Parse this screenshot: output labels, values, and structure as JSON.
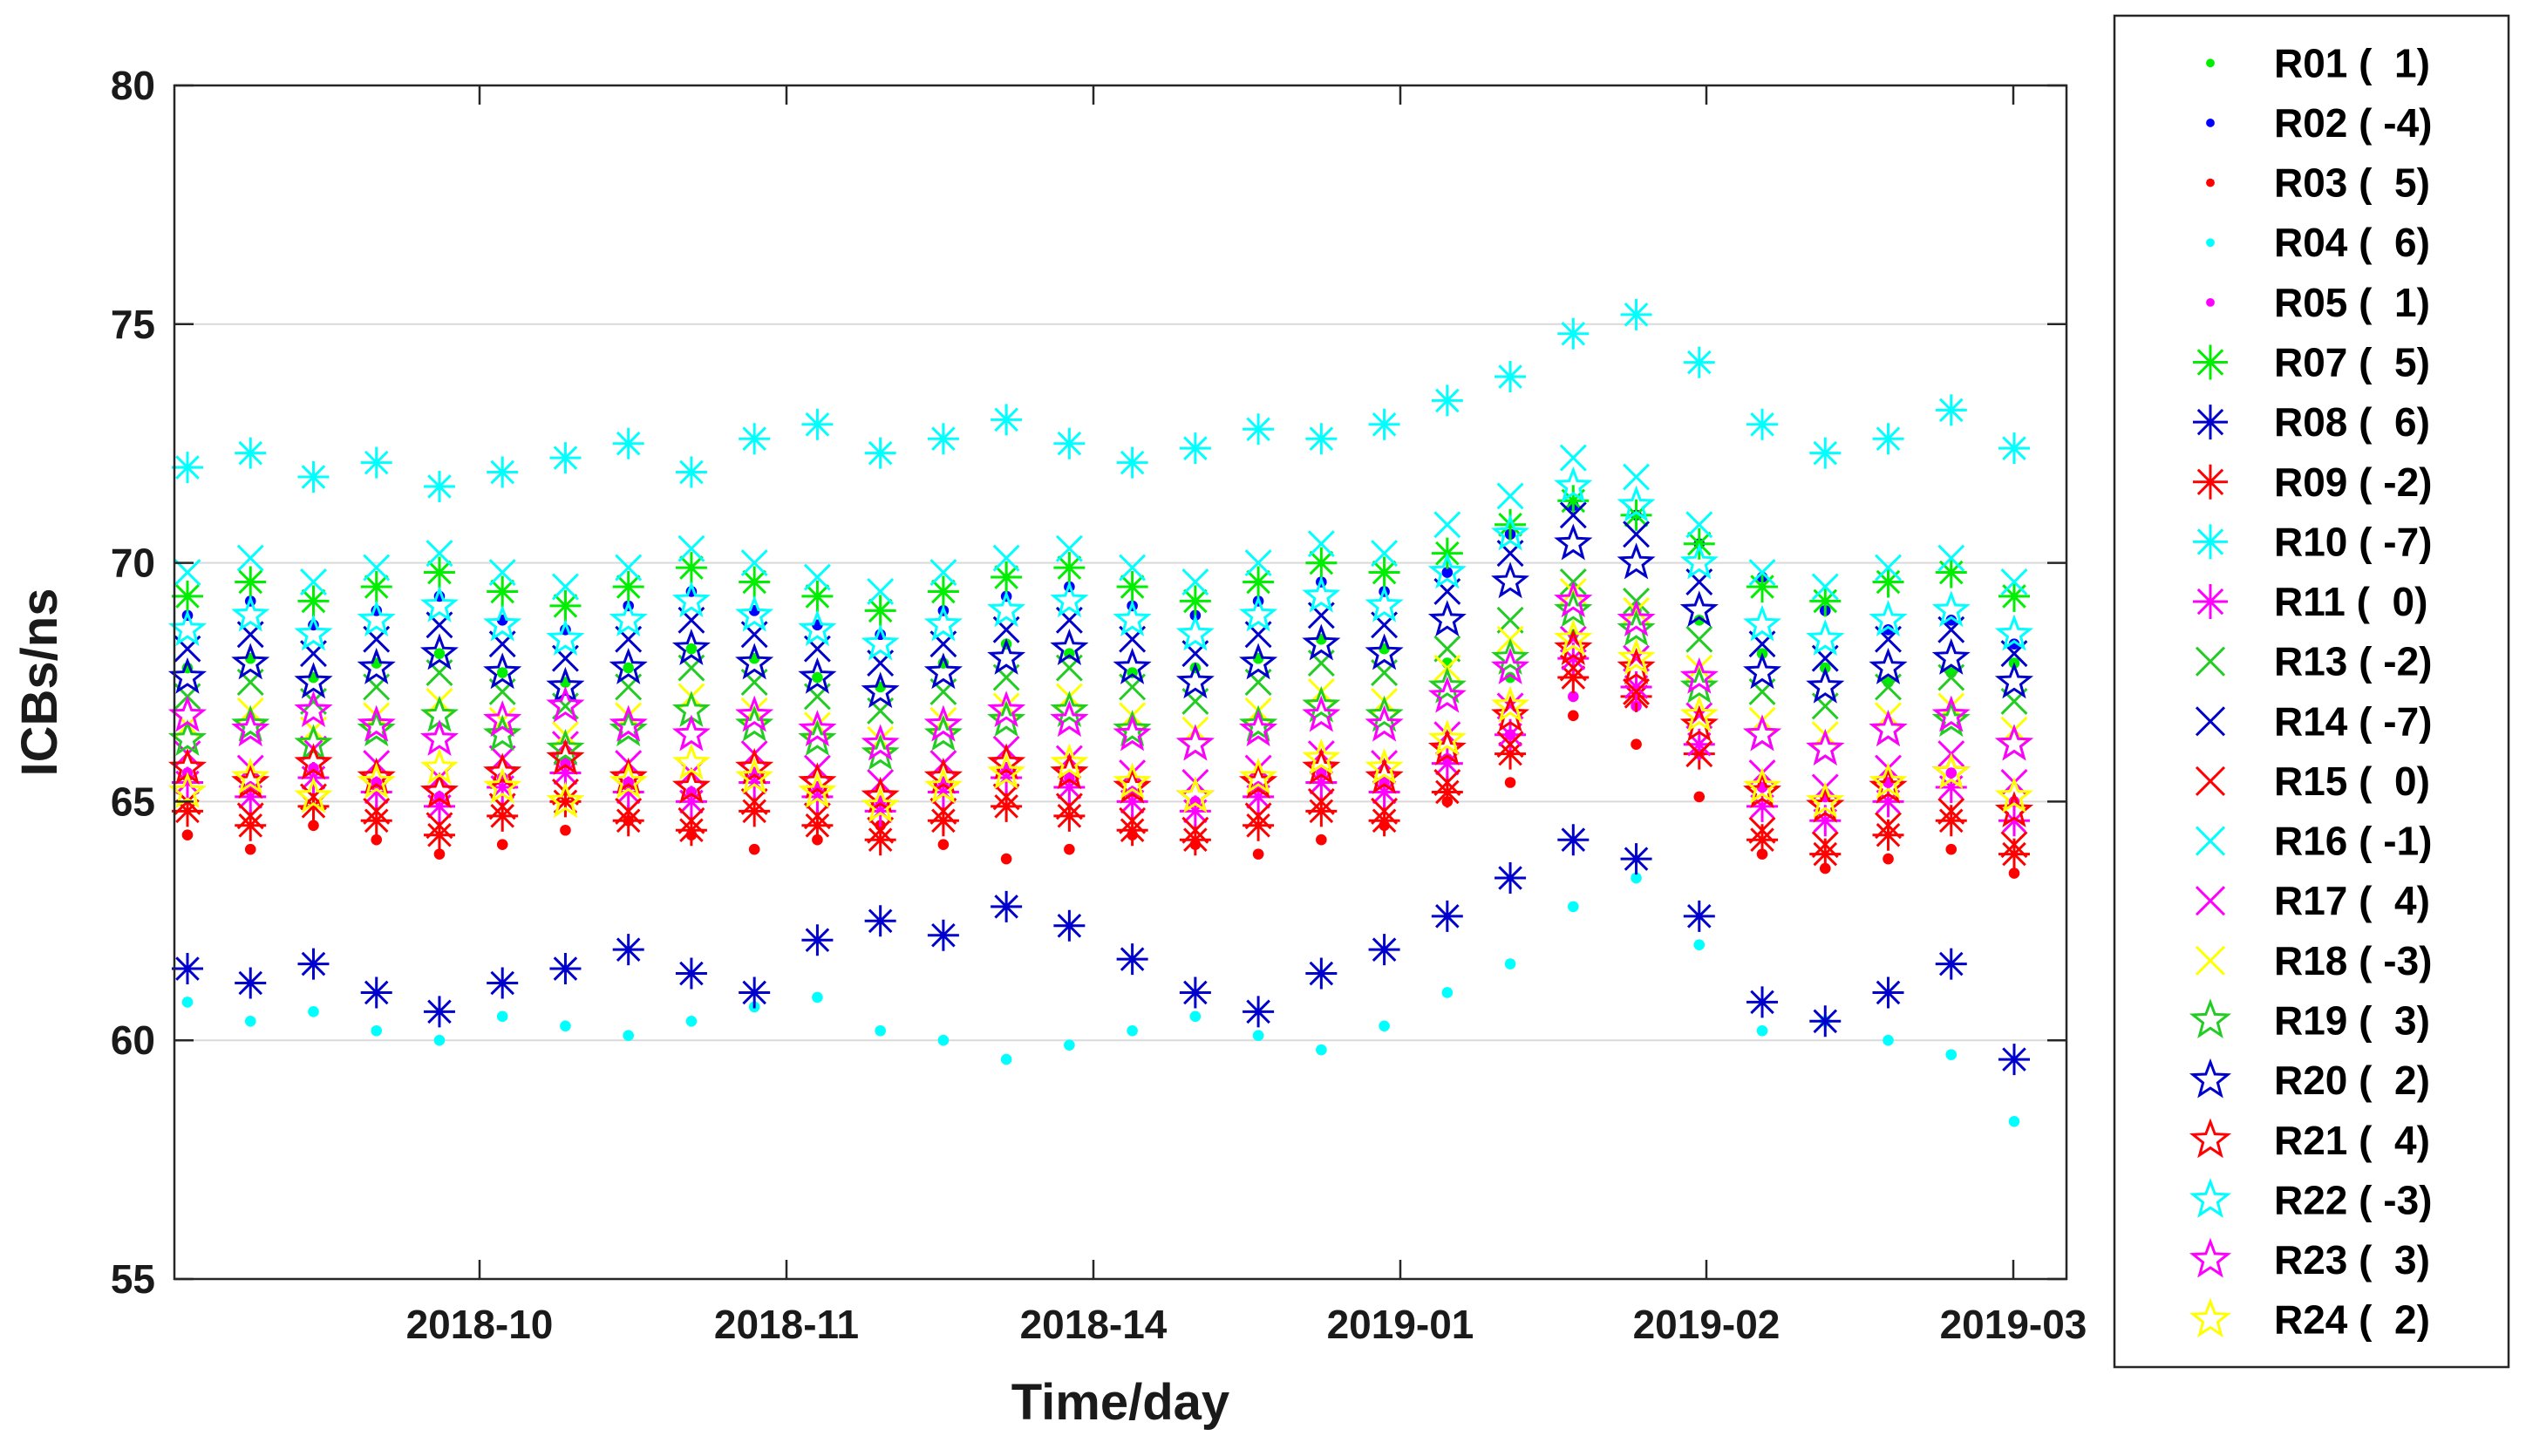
{
  "chart_data": {
    "type": "scatter",
    "title": "",
    "xlabel": "Time/day",
    "ylabel": "ICBs/ns",
    "ylim": [
      55,
      80
    ],
    "yticks": [
      "55",
      "60",
      "65",
      "70",
      "75",
      "80"
    ],
    "xticks": [
      "2018-10",
      "2018-11",
      "2018-14",
      "2019-01",
      "2019-02",
      "2019-03"
    ],
    "grid": "horizontal",
    "legend_position": "right, outside plot",
    "series": [
      {
        "name": "R01 (  1)",
        "color": "#00ee00",
        "marker": "dot",
        "values": [
          67.8,
          68.0,
          67.6,
          67.9,
          68.1,
          67.7,
          67.5,
          67.8,
          68.2,
          68.0,
          67.6,
          67.4,
          67.9,
          68.3,
          68.1,
          67.7,
          67.8,
          68.0,
          68.4,
          68.2,
          67.9,
          67.6,
          68.5,
          69.0,
          68.8,
          68.1,
          67.8,
          67.5,
          67.7,
          67.9
        ]
      },
      {
        "name": "R02 ( -4)",
        "color": "#0000ff",
        "marker": "dot",
        "values": [
          68.9,
          69.2,
          68.7,
          69.0,
          69.3,
          68.8,
          68.6,
          69.1,
          69.4,
          69.0,
          68.7,
          68.5,
          69.0,
          69.3,
          69.5,
          69.1,
          68.9,
          69.2,
          69.6,
          69.4,
          69.8,
          70.6,
          71.2,
          71.0,
          70.4,
          69.7,
          69.0,
          68.6,
          68.8,
          68.3
        ]
      },
      {
        "name": "R03 (  5)",
        "color": "#ff0000",
        "marker": "dot",
        "values": [
          64.3,
          64.0,
          64.5,
          64.2,
          63.9,
          64.1,
          64.4,
          64.6,
          64.3,
          64.0,
          64.2,
          64.5,
          64.1,
          63.8,
          64.0,
          64.3,
          64.1,
          63.9,
          64.2,
          64.5,
          65.0,
          65.4,
          66.8,
          66.2,
          65.1,
          63.9,
          63.6,
          63.8,
          64.0,
          63.5
        ]
      },
      {
        "name": "R04 (  6)",
        "color": "#00ffff",
        "marker": "dot",
        "values": [
          60.8,
          60.4,
          60.6,
          60.2,
          60.0,
          60.5,
          60.3,
          60.1,
          60.4,
          60.7,
          60.9,
          60.2,
          60.0,
          59.6,
          59.9,
          60.2,
          60.5,
          60.1,
          59.8,
          60.3,
          61.0,
          61.6,
          62.8,
          63.4,
          62.0,
          60.2,
          60.4,
          60.0,
          59.7,
          58.3
        ]
      },
      {
        "name": "R05 (  1)",
        "color": "#ff00ff",
        "marker": "dot",
        "values": [
          65.6,
          65.3,
          65.7,
          65.4,
          65.1,
          65.5,
          65.8,
          65.4,
          65.2,
          65.6,
          65.3,
          65.0,
          65.4,
          65.7,
          65.5,
          65.2,
          65.0,
          65.3,
          65.6,
          65.4,
          65.9,
          66.4,
          67.2,
          67.0,
          66.0,
          65.3,
          65.1,
          65.4,
          65.6,
          65.0
        ]
      },
      {
        "name": "R07 (  5)",
        "color": "#00ee00",
        "marker": "asterisk",
        "values": [
          69.3,
          69.6,
          69.2,
          69.5,
          69.8,
          69.4,
          69.1,
          69.5,
          69.9,
          69.6,
          69.3,
          69.0,
          69.4,
          69.7,
          69.9,
          69.5,
          69.2,
          69.6,
          70.0,
          69.8,
          70.2,
          70.8,
          71.3,
          71.0,
          70.4,
          69.5,
          69.2,
          69.6,
          69.8,
          69.3
        ]
      },
      {
        "name": "R08 (  6)",
        "color": "#0000cc",
        "marker": "asterisk",
        "values": [
          61.5,
          61.2,
          61.6,
          61.0,
          60.6,
          61.2,
          61.5,
          61.9,
          61.4,
          61.0,
          62.1,
          62.5,
          62.2,
          62.8,
          62.4,
          61.7,
          61.0,
          60.6,
          61.4,
          61.9,
          62.6,
          63.4,
          64.2,
          63.8,
          62.6,
          60.8,
          60.4,
          61.0,
          61.6,
          59.6
        ]
      },
      {
        "name": "R09 ( -2)",
        "color": "#ff0000",
        "marker": "asterisk",
        "values": [
          64.8,
          64.5,
          64.9,
          64.6,
          64.3,
          64.7,
          65.0,
          64.6,
          64.4,
          64.8,
          64.5,
          64.2,
          64.6,
          64.9,
          64.7,
          64.4,
          64.2,
          64.5,
          64.8,
          64.6,
          65.2,
          66.0,
          67.6,
          67.2,
          66.0,
          64.2,
          63.9,
          64.3,
          64.6,
          63.9
        ]
      },
      {
        "name": "R10 ( -7)",
        "color": "#00ffff",
        "marker": "asterisk",
        "values": [
          72.0,
          72.3,
          71.8,
          72.1,
          71.6,
          71.9,
          72.2,
          72.5,
          71.9,
          72.6,
          72.9,
          72.3,
          72.6,
          73.0,
          72.5,
          72.1,
          72.4,
          72.8,
          72.6,
          72.9,
          73.4,
          73.9,
          74.8,
          75.2,
          74.2,
          72.9,
          72.3,
          72.6,
          73.2,
          72.4
        ]
      },
      {
        "name": "R11 (  0)",
        "color": "#ff00ff",
        "marker": "asterisk",
        "values": [
          65.4,
          65.1,
          65.5,
          65.2,
          64.9,
          65.3,
          65.6,
          65.2,
          65.0,
          65.4,
          65.1,
          64.8,
          65.2,
          65.5,
          65.3,
          65.0,
          64.8,
          65.1,
          65.4,
          65.2,
          65.8,
          66.4,
          68.0,
          67.4,
          66.2,
          64.9,
          64.6,
          65.0,
          65.3,
          64.6
        ]
      },
      {
        "name": "R13 ( -2)",
        "color": "#22cc22",
        "marker": "x",
        "values": [
          67.2,
          67.5,
          67.1,
          67.4,
          67.7,
          67.3,
          67.0,
          67.4,
          67.8,
          67.5,
          67.2,
          66.9,
          67.3,
          67.6,
          67.8,
          67.4,
          67.1,
          67.5,
          67.9,
          67.7,
          68.2,
          68.8,
          69.6,
          69.2,
          68.4,
          67.3,
          67.0,
          67.4,
          67.6,
          67.1
        ]
      },
      {
        "name": "R14 ( -7)",
        "color": "#0000cc",
        "marker": "x",
        "values": [
          68.2,
          68.5,
          68.1,
          68.4,
          68.7,
          68.3,
          68.0,
          68.4,
          68.8,
          68.5,
          68.2,
          67.9,
          68.3,
          68.6,
          68.8,
          68.4,
          68.1,
          68.5,
          68.9,
          68.7,
          69.4,
          70.2,
          71.0,
          70.6,
          69.6,
          68.3,
          68.0,
          68.4,
          68.6,
          68.1
        ]
      },
      {
        "name": "R15 (  0)",
        "color": "#ff0000",
        "marker": "x",
        "values": [
          65.0,
          64.7,
          65.1,
          64.8,
          64.5,
          64.9,
          65.2,
          64.8,
          64.6,
          65.0,
          64.7,
          64.4,
          64.8,
          65.1,
          64.9,
          64.6,
          64.4,
          64.7,
          65.0,
          64.8,
          65.4,
          66.2,
          67.8,
          67.3,
          66.0,
          64.4,
          64.1,
          64.5,
          64.8,
          64.1
        ]
      },
      {
        "name": "R16 ( -1)",
        "color": "#00ffff",
        "marker": "x",
        "values": [
          69.8,
          70.1,
          69.6,
          69.9,
          70.2,
          69.8,
          69.5,
          69.9,
          70.3,
          70.0,
          69.7,
          69.4,
          69.8,
          70.1,
          70.3,
          69.9,
          69.6,
          70.0,
          70.4,
          70.2,
          70.8,
          71.4,
          72.2,
          71.8,
          70.8,
          69.8,
          69.5,
          69.9,
          70.1,
          69.6
        ]
      },
      {
        "name": "R17 (  4)",
        "color": "#ff00ff",
        "marker": "x",
        "values": [
          66.0,
          65.7,
          66.1,
          65.8,
          65.5,
          65.9,
          66.2,
          65.8,
          65.6,
          66.0,
          65.7,
          65.4,
          65.8,
          66.1,
          65.9,
          65.6,
          65.4,
          65.7,
          66.0,
          65.8,
          66.4,
          67.0,
          68.4,
          68.0,
          66.8,
          65.6,
          65.3,
          65.7,
          66.0,
          65.4
        ]
      },
      {
        "name": "R18 ( -3)",
        "color": "#ffff00",
        "marker": "x",
        "values": [
          66.6,
          66.9,
          66.5,
          66.8,
          67.1,
          66.7,
          66.4,
          66.8,
          67.2,
          66.9,
          66.6,
          66.3,
          66.7,
          67.0,
          67.2,
          66.8,
          66.5,
          66.9,
          67.3,
          67.1,
          67.8,
          68.4,
          69.4,
          69.0,
          67.8,
          66.7,
          66.4,
          66.8,
          67.0,
          66.5
        ]
      },
      {
        "name": "R19 (  3)",
        "color": "#22cc22",
        "marker": "star",
        "values": [
          66.3,
          66.6,
          66.2,
          66.5,
          66.8,
          66.4,
          66.1,
          66.5,
          66.9,
          66.6,
          66.3,
          66.0,
          66.4,
          66.7,
          66.9,
          66.5,
          66.2,
          66.6,
          67.0,
          66.8,
          67.4,
          68.0,
          69.0,
          68.6,
          67.4,
          66.4,
          66.1,
          66.5,
          66.7,
          66.2
        ]
      },
      {
        "name": "R20 (  2)",
        "color": "#0000cc",
        "marker": "star",
        "values": [
          67.6,
          67.9,
          67.5,
          67.8,
          68.1,
          67.7,
          67.4,
          67.8,
          68.2,
          67.9,
          67.6,
          67.3,
          67.7,
          68.0,
          68.2,
          67.8,
          67.5,
          67.9,
          68.3,
          68.1,
          68.8,
          69.6,
          70.4,
          70.0,
          69.0,
          67.7,
          67.4,
          67.8,
          68.0,
          67.5
        ]
      },
      {
        "name": "R21 (  4)",
        "color": "#ff0000",
        "marker": "star",
        "values": [
          65.7,
          65.4,
          65.8,
          65.5,
          65.2,
          65.6,
          65.9,
          65.5,
          65.3,
          65.7,
          65.4,
          65.1,
          65.5,
          65.8,
          65.6,
          65.3,
          65.1,
          65.4,
          65.7,
          65.5,
          66.1,
          66.8,
          68.2,
          67.8,
          66.6,
          65.2,
          64.9,
          65.3,
          65.6,
          64.8
        ]
      },
      {
        "name": "R22 ( -3)",
        "color": "#00ffff",
        "marker": "star",
        "values": [
          68.6,
          68.9,
          68.5,
          68.8,
          69.1,
          68.7,
          68.4,
          68.8,
          69.2,
          68.9,
          68.6,
          68.3,
          68.7,
          69.0,
          69.2,
          68.8,
          68.5,
          68.9,
          69.3,
          69.1,
          69.8,
          70.6,
          71.6,
          71.2,
          70.0,
          68.7,
          68.4,
          68.8,
          69.0,
          68.5
        ]
      },
      {
        "name": "R23 (  3)",
        "color": "#ff00ff",
        "marker": "star",
        "values": [
          66.8,
          66.5,
          66.9,
          66.6,
          66.3,
          66.7,
          67.0,
          66.6,
          66.4,
          66.8,
          66.5,
          66.2,
          66.6,
          66.9,
          66.7,
          66.4,
          66.2,
          66.5,
          66.8,
          66.6,
          67.2,
          67.8,
          69.2,
          68.8,
          67.6,
          66.4,
          66.1,
          66.5,
          66.8,
          66.2
        ]
      },
      {
        "name": "R24 (  2)",
        "color": "#ffff00",
        "marker": "star",
        "values": [
          65.2,
          65.5,
          65.1,
          65.4,
          65.7,
          65.3,
          65.0,
          65.4,
          65.8,
          65.5,
          65.2,
          64.9,
          65.3,
          65.6,
          65.8,
          65.4,
          65.1,
          65.5,
          65.9,
          65.7,
          66.3,
          67.0,
          68.4,
          68.0,
          66.8,
          65.3,
          65.0,
          65.4,
          65.6,
          65.1
        ]
      }
    ]
  }
}
